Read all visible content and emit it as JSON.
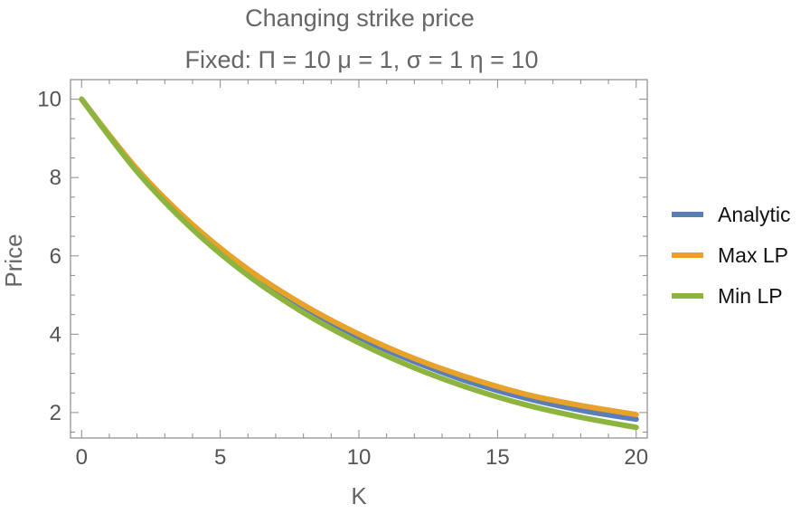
{
  "chart_data": {
    "type": "line",
    "title": "Changing strike price",
    "subtitle": "Fixed: Π = 10 μ = 1, σ = 1 η = 10",
    "xlabel": "K",
    "ylabel": "Price",
    "xlim": [
      -0.4,
      20.4
    ],
    "ylim": [
      1.35,
      10.5
    ],
    "xticks": [
      0,
      5,
      10,
      15,
      20
    ],
    "yticks": [
      2,
      4,
      6,
      8,
      10
    ],
    "grid": false,
    "legend_position": "right",
    "x": [
      0,
      2,
      4,
      6,
      8,
      10,
      12,
      14,
      16,
      18,
      20
    ],
    "series": [
      {
        "name": "Analytic",
        "color": "#5b7db8",
        "values": [
          10.0,
          8.18,
          6.74,
          5.59,
          4.67,
          3.92,
          3.3,
          2.78,
          2.37,
          2.06,
          1.83
        ]
      },
      {
        "name": "Max LP",
        "color": "#e8a22a",
        "values": [
          10.0,
          8.22,
          6.8,
          5.66,
          4.75,
          4.0,
          3.38,
          2.88,
          2.47,
          2.18,
          1.95
        ]
      },
      {
        "name": "Min LP",
        "color": "#8db43e",
        "values": [
          10.0,
          8.15,
          6.68,
          5.5,
          4.55,
          3.78,
          3.14,
          2.62,
          2.2,
          1.88,
          1.62
        ]
      }
    ]
  }
}
